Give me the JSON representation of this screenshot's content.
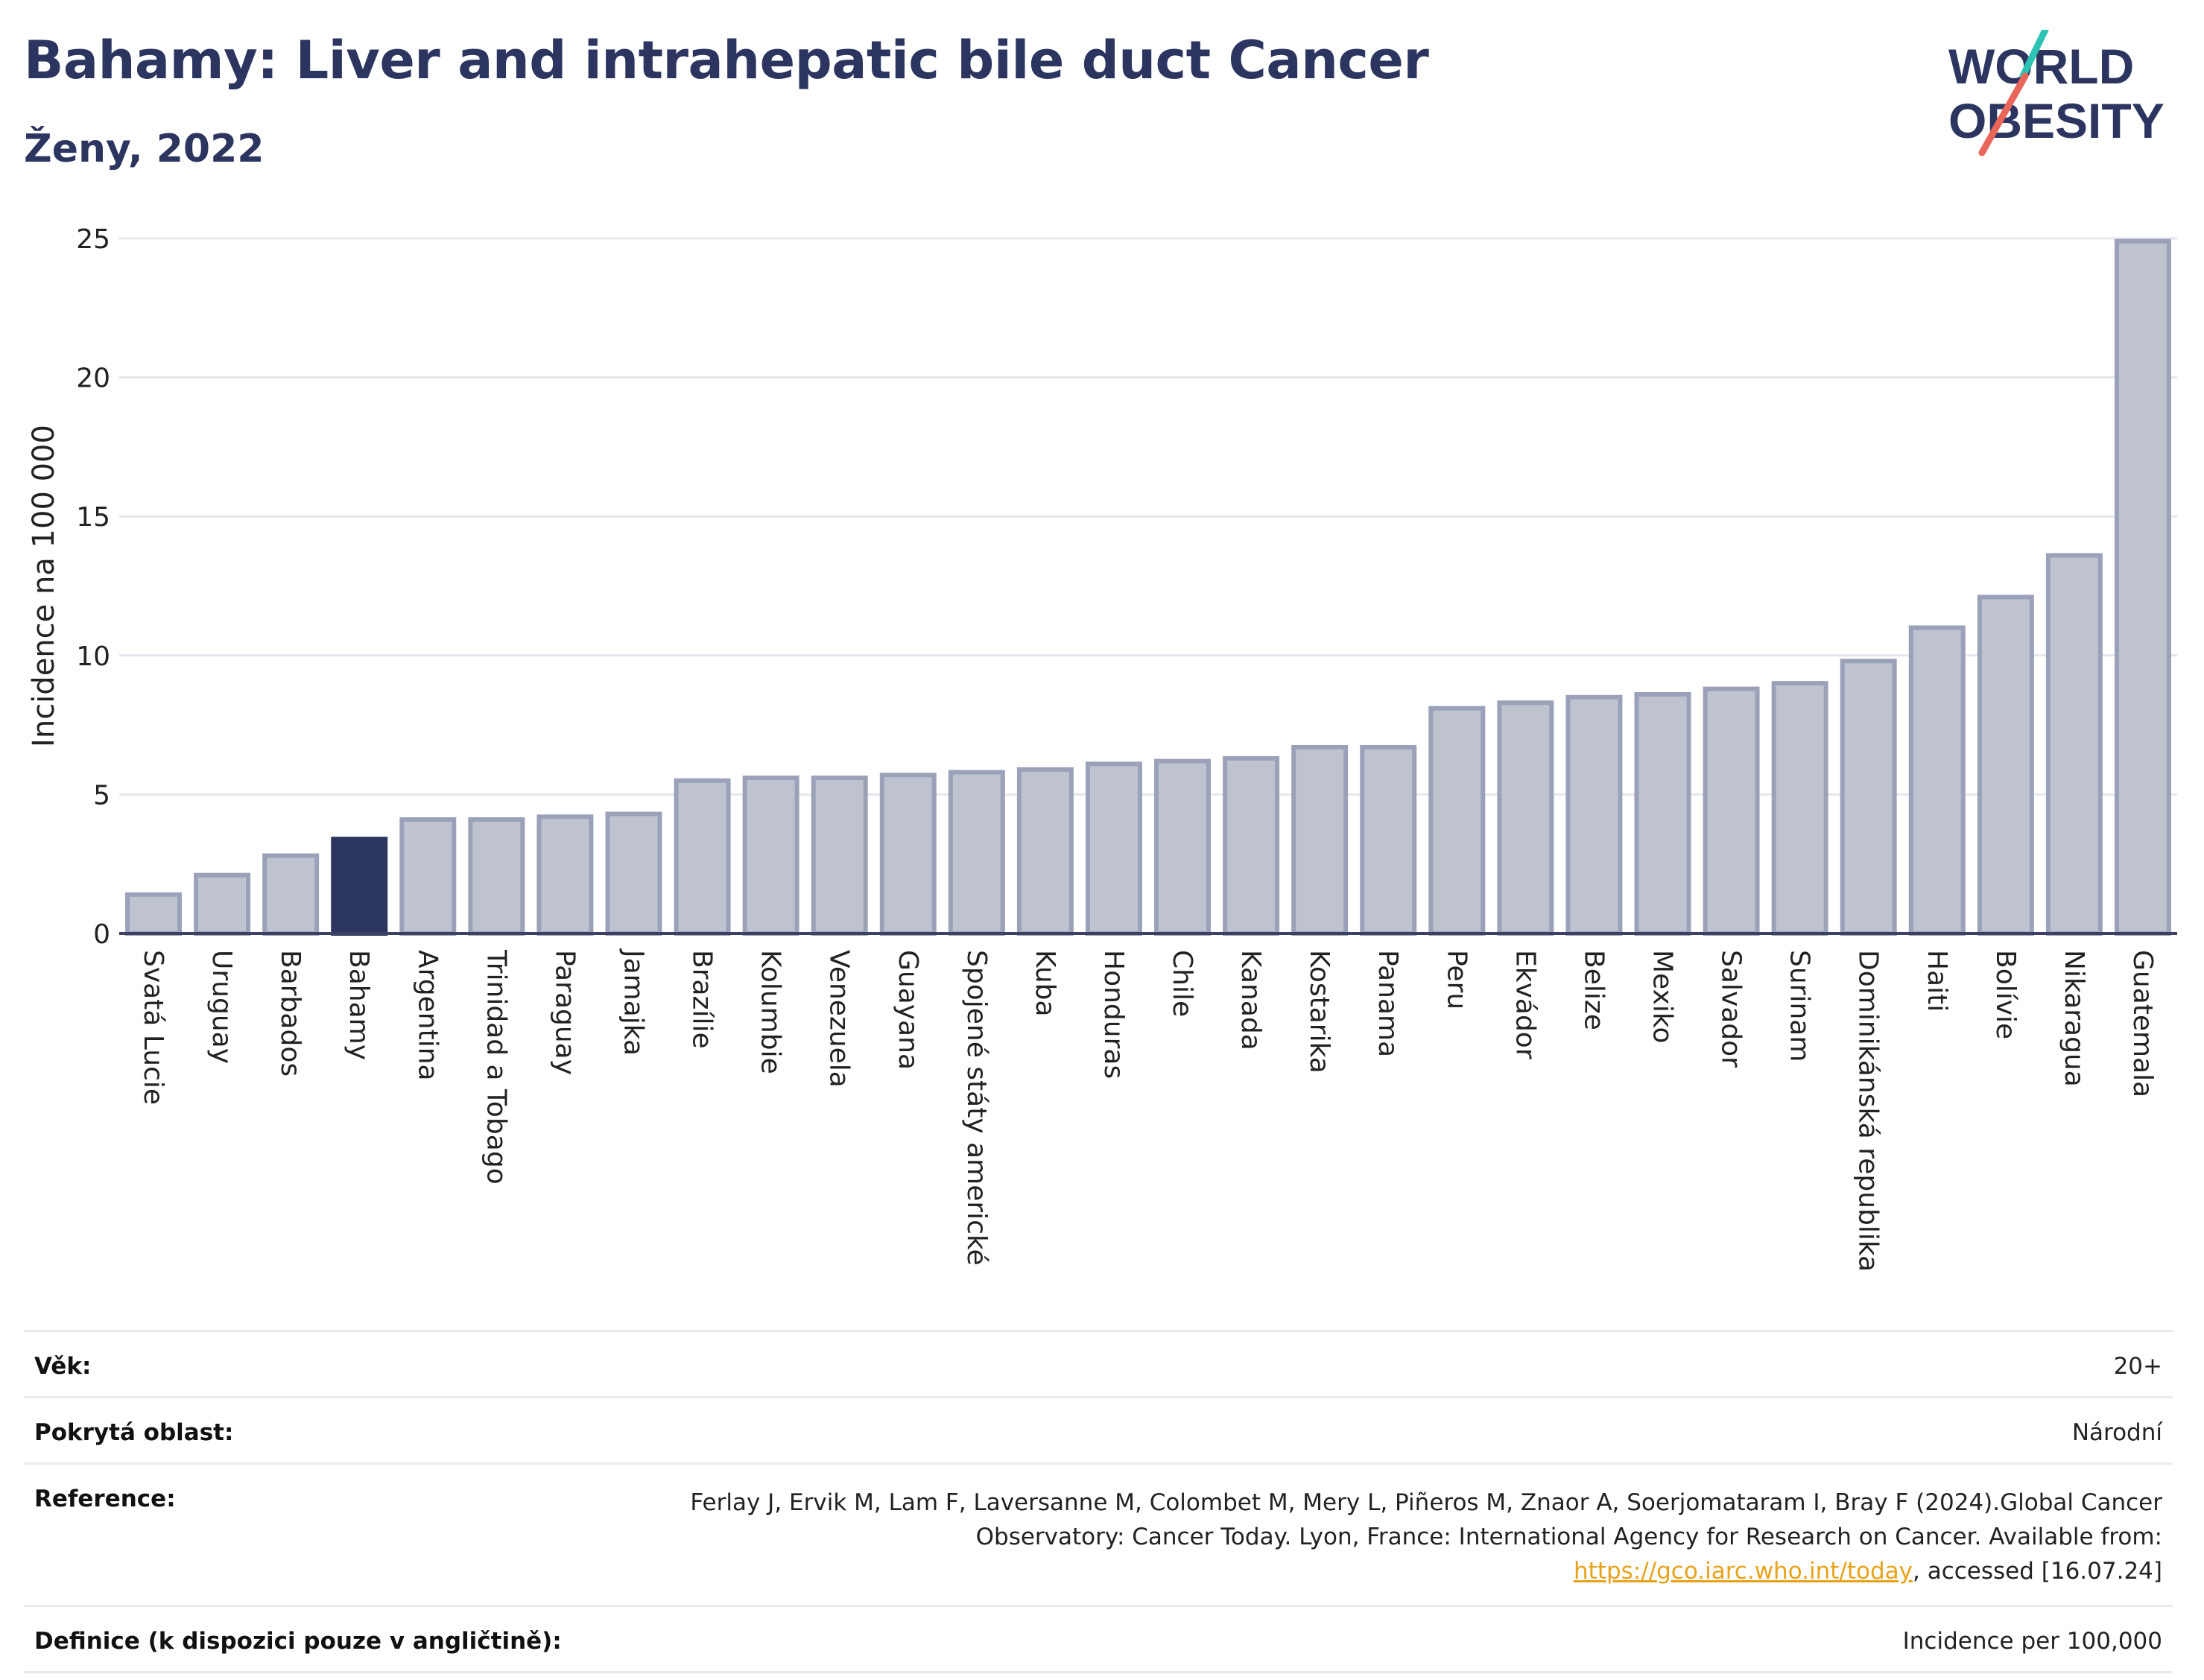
{
  "header": {
    "title": "Bahamy: Liver and intrahepatic bile duct Cancer",
    "subtitle": "Ženy, 2022"
  },
  "logo": {
    "line1": "WORLD",
    "line2": "OBESITY",
    "text_color": "#2b3560",
    "slash_colors": [
      "#2cc3b5",
      "#e8675a"
    ]
  },
  "chart_data": {
    "type": "bar",
    "ylabel": "Incidence na 100 000",
    "ylim": [
      0,
      25
    ],
    "yticks": [
      0,
      5,
      10,
      15,
      20,
      25
    ],
    "grid": true,
    "highlight": "Bahamy",
    "colors": {
      "bar": "#bfc3d0",
      "bar_edge": "#9aa1b8",
      "highlight": "#2b3560",
      "grid": "#e6e7ee",
      "axis": "#3b4160"
    },
    "categories": [
      "Svatá Lucie",
      "Uruguay",
      "Barbados",
      "Bahamy",
      "Argentina",
      "Trinidad a Tobago",
      "Paraguay",
      "Jamajka",
      "Brazílie",
      "Kolumbie",
      "Venezuela",
      "Guayana",
      "Spojené státy americké",
      "Kuba",
      "Honduras",
      "Chile",
      "Kanada",
      "Kostarika",
      "Panama",
      "Peru",
      "Ekvádor",
      "Belize",
      "Mexiko",
      "Salvador",
      "Surinam",
      "Dominikánská republika",
      "Haiti",
      "Bolívie",
      "Nikaragua",
      "Guatemala"
    ],
    "values": [
      1.4,
      2.1,
      2.8,
      3.4,
      4.1,
      4.1,
      4.2,
      4.3,
      5.5,
      5.6,
      5.6,
      5.7,
      5.8,
      5.9,
      6.1,
      6.2,
      6.3,
      6.7,
      6.7,
      8.1,
      8.3,
      8.5,
      8.6,
      8.8,
      9.0,
      9.8,
      11.0,
      12.1,
      13.6,
      24.9
    ]
  },
  "meta": {
    "age_label": "Věk:",
    "age_value": "20+",
    "area_label": "Pokrytá oblast:",
    "area_value": "Národní",
    "reference_label": "Reference:",
    "reference_text_1": "Ferlay J, Ervik M, Lam F, Laversanne M, Colombet M, Mery L, Piñeros M, Znaor A, Soerjomataram I, Bray F (2024).Global Cancer Observatory: Cancer Today. Lyon, France: International Agency for Research on Cancer. Available from: ",
    "reference_link": "https://gco.iarc.who.int/today",
    "reference_text_2": ", accessed [16.07.24]",
    "definition_label": "Definice (k dispozici pouze v angličtině):",
    "definition_value": "Incidence per 100,000"
  }
}
